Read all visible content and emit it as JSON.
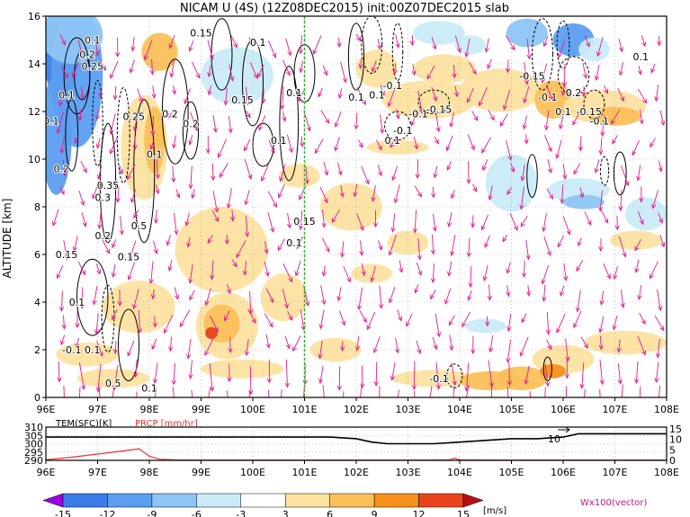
{
  "chart_data": {
    "type": "heatmap",
    "title": "NICAM U (4S) (12Z08DEC2015) init:00Z07DEC2015 slab",
    "ylabel": "ALTITUDE [km]",
    "xlim": [
      96,
      108
    ],
    "ylim": [
      0,
      16
    ],
    "x_ticks": [
      "96E",
      "97E",
      "98E",
      "99E",
      "100E",
      "101E",
      "102E",
      "103E",
      "104E",
      "105E",
      "106E",
      "107E",
      "108E"
    ],
    "y_ticks": [
      "0",
      "2",
      "4",
      "6",
      "8",
      "10",
      "12",
      "14",
      "16"
    ],
    "grid": true,
    "marker_line_x": 101,
    "contour_labels": [
      {
        "lon": 96.9,
        "alt": 15.0,
        "text": "0.1"
      },
      {
        "lon": 96.8,
        "alt": 14.4,
        "text": "0.2"
      },
      {
        "lon": 96.9,
        "alt": 13.9,
        "text": "0.25"
      },
      {
        "lon": 96.4,
        "alt": 12.7,
        "text": "0.1"
      },
      {
        "lon": 96.1,
        "alt": 11.6,
        "text": "0.1"
      },
      {
        "lon": 97.7,
        "alt": 11.8,
        "text": "0.25"
      },
      {
        "lon": 98.4,
        "alt": 11.9,
        "text": "0.2"
      },
      {
        "lon": 98.8,
        "alt": 11.5,
        "text": "0.2"
      },
      {
        "lon": 98.1,
        "alt": 10.2,
        "text": "0.1"
      },
      {
        "lon": 99.0,
        "alt": 15.3,
        "text": "0.15"
      },
      {
        "lon": 100.1,
        "alt": 14.9,
        "text": "0.1"
      },
      {
        "lon": 99.8,
        "alt": 12.5,
        "text": "0.15"
      },
      {
        "lon": 100.5,
        "alt": 10.8,
        "text": "0.1"
      },
      {
        "lon": 100.8,
        "alt": 12.8,
        "text": "0.1"
      },
      {
        "lon": 96.3,
        "alt": 9.6,
        "text": "0.2"
      },
      {
        "lon": 97.2,
        "alt": 8.9,
        "text": "0.35"
      },
      {
        "lon": 97.1,
        "alt": 8.4,
        "text": "0.3"
      },
      {
        "lon": 97.8,
        "alt": 7.2,
        "text": "0.5"
      },
      {
        "lon": 97.1,
        "alt": 6.8,
        "text": "0.2"
      },
      {
        "lon": 96.4,
        "alt": 6.0,
        "text": "0.15"
      },
      {
        "lon": 97.6,
        "alt": 5.9,
        "text": "0.15"
      },
      {
        "lon": 101.0,
        "alt": 7.4,
        "text": "0.15"
      },
      {
        "lon": 100.8,
        "alt": 6.5,
        "text": "0.1"
      },
      {
        "lon": 96.6,
        "alt": 4.0,
        "text": "0.1"
      },
      {
        "lon": 96.5,
        "alt": 2.0,
        "text": "-0.1"
      },
      {
        "lon": 96.9,
        "alt": 2.0,
        "text": "0.1"
      },
      {
        "lon": 97.3,
        "alt": 0.6,
        "text": "0.5"
      },
      {
        "lon": 98.0,
        "alt": 0.4,
        "text": "0.1"
      },
      {
        "lon": 102.0,
        "alt": 12.6,
        "text": "0.1"
      },
      {
        "lon": 102.4,
        "alt": 12.7,
        "text": "0.1"
      },
      {
        "lon": 102.7,
        "alt": 13.1,
        "text": "-0.1"
      },
      {
        "lon": 103.6,
        "alt": 12.1,
        "text": "-0.15"
      },
      {
        "lon": 103.2,
        "alt": 11.9,
        "text": "-0.1"
      },
      {
        "lon": 102.9,
        "alt": 11.2,
        "text": "-0.1"
      },
      {
        "lon": 102.7,
        "alt": 10.8,
        "text": "0.1"
      },
      {
        "lon": 105.4,
        "alt": 13.5,
        "text": "-0.15"
      },
      {
        "lon": 105.7,
        "alt": 12.6,
        "text": "-0.1"
      },
      {
        "lon": 106.2,
        "alt": 12.8,
        "text": "0.2"
      },
      {
        "lon": 106.0,
        "alt": 12.0,
        "text": "0.1"
      },
      {
        "lon": 106.5,
        "alt": 12.0,
        "text": "-0.15"
      },
      {
        "lon": 106.7,
        "alt": 11.6,
        "text": "-0.1"
      },
      {
        "lon": 107.5,
        "alt": 14.3,
        "text": "0.1"
      },
      {
        "lon": 103.6,
        "alt": 0.8,
        "text": "-0.1"
      }
    ],
    "colorbar": {
      "levels": [
        "-15",
        "-12",
        "-9",
        "-6",
        "-3",
        "3",
        "6",
        "9",
        "12",
        "15"
      ],
      "colors": [
        "#9b00e6",
        "#3a7ce8",
        "#5c9ef0",
        "#8ec5f5",
        "#c9ecf8",
        "#ffffff",
        "#fde2a0",
        "#fbc05a",
        "#f7901b",
        "#e8451c",
        "#b80f14"
      ],
      "unit": "[m/s]"
    },
    "vector_label": "Wx100(vector)",
    "vector_color": "#e6188e",
    "bottom_panel": {
      "tem_label": "TEM(SFC)[K]",
      "prcp_label": "PRCP [mm/hr]",
      "left_ticks": [
        "310",
        "305",
        "300",
        "295",
        "290"
      ],
      "right_ticks": [
        "15",
        "10",
        "5",
        "0"
      ],
      "x_ticks": [
        "96E",
        "97E",
        "98E",
        "99E",
        "100E",
        "101E",
        "102E",
        "103E",
        "104E",
        "105E",
        "106E",
        "107E",
        "108E"
      ],
      "tem_series": {
        "lon": [
          96,
          96.5,
          97,
          97.5,
          98,
          98.5,
          99,
          99.5,
          100,
          100.5,
          101,
          101.5,
          102,
          102.3,
          102.6,
          103,
          103.5,
          104,
          104.5,
          105,
          105.5,
          106,
          106.3,
          107,
          108
        ],
        "values": [
          304,
          304,
          304,
          304,
          304,
          304,
          304,
          304,
          304,
          304,
          304,
          304,
          303,
          301,
          300,
          300,
          300,
          301,
          302,
          303,
          303,
          304,
          306,
          306,
          306
        ]
      },
      "prcp_series": {
        "lon": [
          96,
          96.5,
          97,
          97.5,
          97.8,
          98,
          98.2,
          98.5,
          99,
          100,
          101,
          102,
          103,
          103.8,
          103.9,
          104,
          105,
          106,
          107,
          108
        ],
        "values": [
          0.3,
          1.5,
          3.0,
          4.5,
          5.5,
          2.0,
          0.5,
          0.2,
          0.1,
          0.1,
          0.1,
          0.1,
          0.1,
          0.2,
          1.0,
          0.2,
          0.1,
          0.1,
          0.1,
          0.1
        ]
      },
      "annotation": "10"
    }
  }
}
